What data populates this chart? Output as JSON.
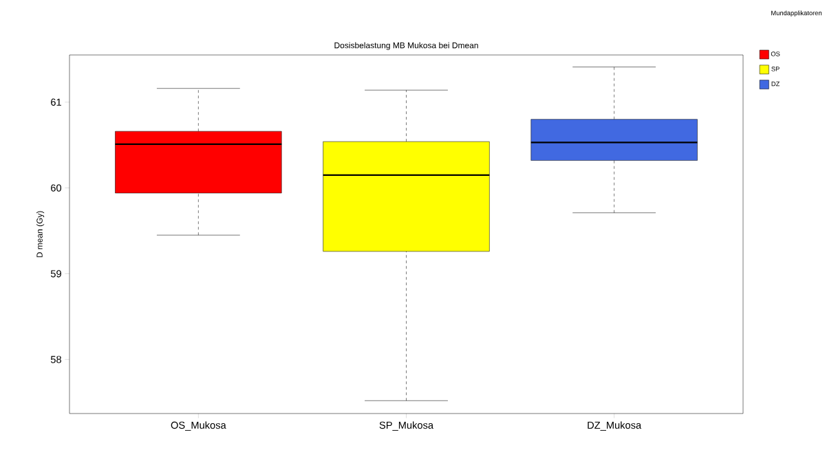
{
  "chart_data": {
    "type": "box",
    "title": "Dosisbelastung MB Mukosa bei Dmean",
    "ylabel": "D mean (Gy)",
    "categories": [
      "OS_Mukosa",
      "SP_Mukosa",
      "DZ_Mukosa"
    ],
    "legend_title": "Mundapplikatoren",
    "legend": "top right",
    "series": [
      {
        "name": "OS",
        "color": "#ff0000",
        "boxes": [
          {
            "low": 59.45,
            "q1": 59.94,
            "median": 60.51,
            "q3": 60.66,
            "high": 61.16
          },
          null,
          null
        ]
      },
      {
        "name": "SP",
        "color": "#ffff00",
        "boxes": [
          null,
          {
            "low": 57.52,
            "q1": 59.26,
            "median": 60.15,
            "q3": 60.54,
            "high": 61.14
          },
          null
        ]
      },
      {
        "name": "DZ",
        "color": "#4169e1",
        "boxes": [
          null,
          null,
          {
            "low": 59.71,
            "q1": 60.32,
            "median": 60.53,
            "q3": 60.8,
            "high": 61.41
          }
        ]
      }
    ],
    "ylim": [
      57.37,
      61.55
    ],
    "yticks": [
      58,
      59,
      60,
      61
    ],
    "grid": false
  }
}
